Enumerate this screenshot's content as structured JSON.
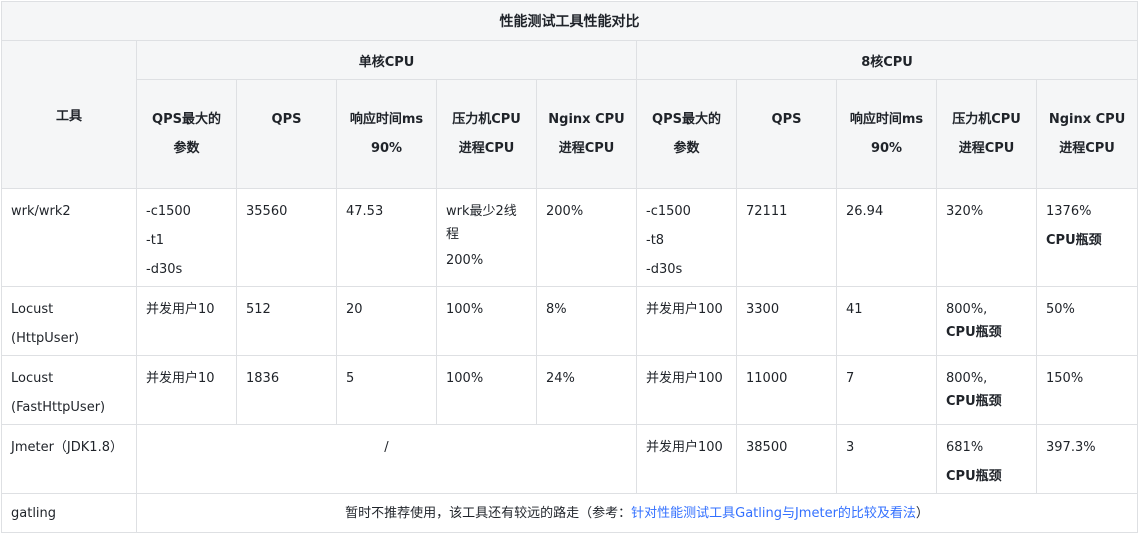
{
  "table": {
    "title": "性能测试工具性能对比",
    "tool_header": "工具",
    "groups": [
      "单核CPU",
      "8核CPU"
    ],
    "sub_headers": [
      [
        "QPS最大的",
        "参数"
      ],
      [
        "QPS"
      ],
      [
        "响应时间ms",
        "90%"
      ],
      [
        "压力机CPU",
        "进程CPU"
      ],
      [
        "Nginx CPU",
        "进程CPU"
      ]
    ],
    "rows": [
      {
        "tool": [
          "wrk/wrk2"
        ],
        "single": {
          "params": [
            "-c1500",
            "-t1",
            "-d30s"
          ],
          "qps": "35560",
          "resp": "47.53",
          "press_cpu": [
            "wrk最少2线程",
            "200%"
          ],
          "nginx_cpu": "200%"
        },
        "multi": {
          "params": [
            "-c1500",
            "-t8",
            "-d30s"
          ],
          "qps": "72111",
          "resp": "26.94",
          "press_cpu": [
            "320%"
          ],
          "nginx_cpu": [
            "1376%",
            "CPU瓶颈"
          ]
        }
      },
      {
        "tool": [
          "Locust",
          "(HttpUser)"
        ],
        "single": {
          "params": [
            "并发用户10"
          ],
          "qps": "512",
          "resp": "20",
          "press_cpu": [
            "100%"
          ],
          "nginx_cpu": "8%"
        },
        "multi": {
          "params": [
            "并发用户100"
          ],
          "qps": "3300",
          "resp": "41",
          "press_cpu": [
            "800%,",
            "CPU瓶颈"
          ],
          "nginx_cpu": [
            "50%"
          ]
        }
      },
      {
        "tool": [
          "Locust",
          "(FastHttpUser)"
        ],
        "single": {
          "params": [
            "并发用户10"
          ],
          "qps": "1836",
          "resp": "5",
          "press_cpu": [
            "100%"
          ],
          "nginx_cpu": "24%"
        },
        "multi": {
          "params": [
            "并发用户100"
          ],
          "qps": "11000",
          "resp": "7",
          "press_cpu": [
            "800%,",
            "CPU瓶颈"
          ],
          "nginx_cpu": [
            "150%"
          ]
        }
      },
      {
        "tool": [
          "Jmeter（JDK1.8）"
        ],
        "single_merged": "/",
        "multi": {
          "params": [
            "并发用户100"
          ],
          "qps": "38500",
          "resp": "3",
          "press_cpu": [
            "681%",
            "CPU瓶颈"
          ],
          "nginx_cpu": [
            "397.3%"
          ]
        }
      }
    ],
    "gatling": {
      "tool": "gatling",
      "note_prefix": "暂时不推荐使用，该工具还有较远的路走（参考：",
      "link_text": "针对性能测试工具Gatling与Jmeter的比较及看法",
      "note_suffix": "）"
    },
    "colors": {
      "header_bg": "#f5f6f7",
      "border": "#dee0e3",
      "link": "#3370ff",
      "text": "#1f2329"
    }
  }
}
